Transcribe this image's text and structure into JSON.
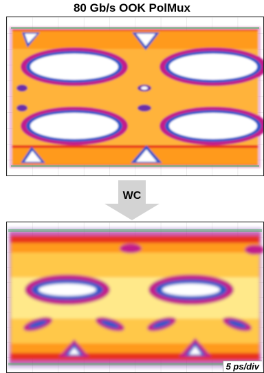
{
  "title": "80 Gb/s OOK PolMux",
  "arrow_label": "WC",
  "scale_label": "5 ps/div",
  "colors": {
    "white_core": "#ffffff",
    "yellow": "#ffe24a",
    "orange": "#ff9a1a",
    "red": "#e8331b",
    "magenta": "#c21a8c",
    "purple": "#6a2fa8",
    "blue": "#2f57c9",
    "green_noise": "#3fae5a",
    "grid": "#c9c9c9"
  }
}
